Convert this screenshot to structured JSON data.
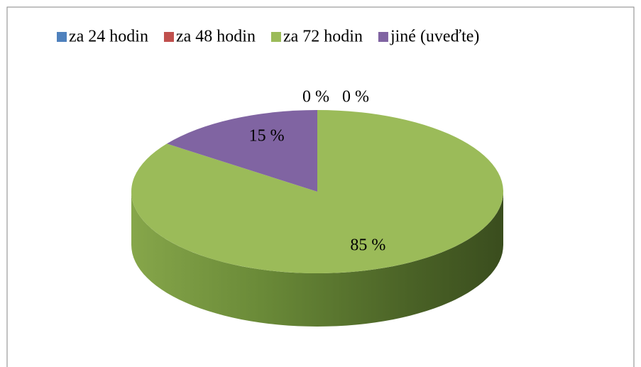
{
  "chart_data": {
    "type": "pie",
    "categories": [
      "za 24 hodin",
      "za 48 hodin",
      "za 72 hodin",
      "jiné (uveďte)"
    ],
    "values": [
      0,
      0,
      85,
      15
    ],
    "value_labels": [
      "0 %",
      "0 %",
      "85 %",
      "15 %"
    ],
    "colors": [
      "#4f81bd",
      "#c0504d",
      "#9bbb59",
      "#8064a2"
    ],
    "legend": "top"
  }
}
